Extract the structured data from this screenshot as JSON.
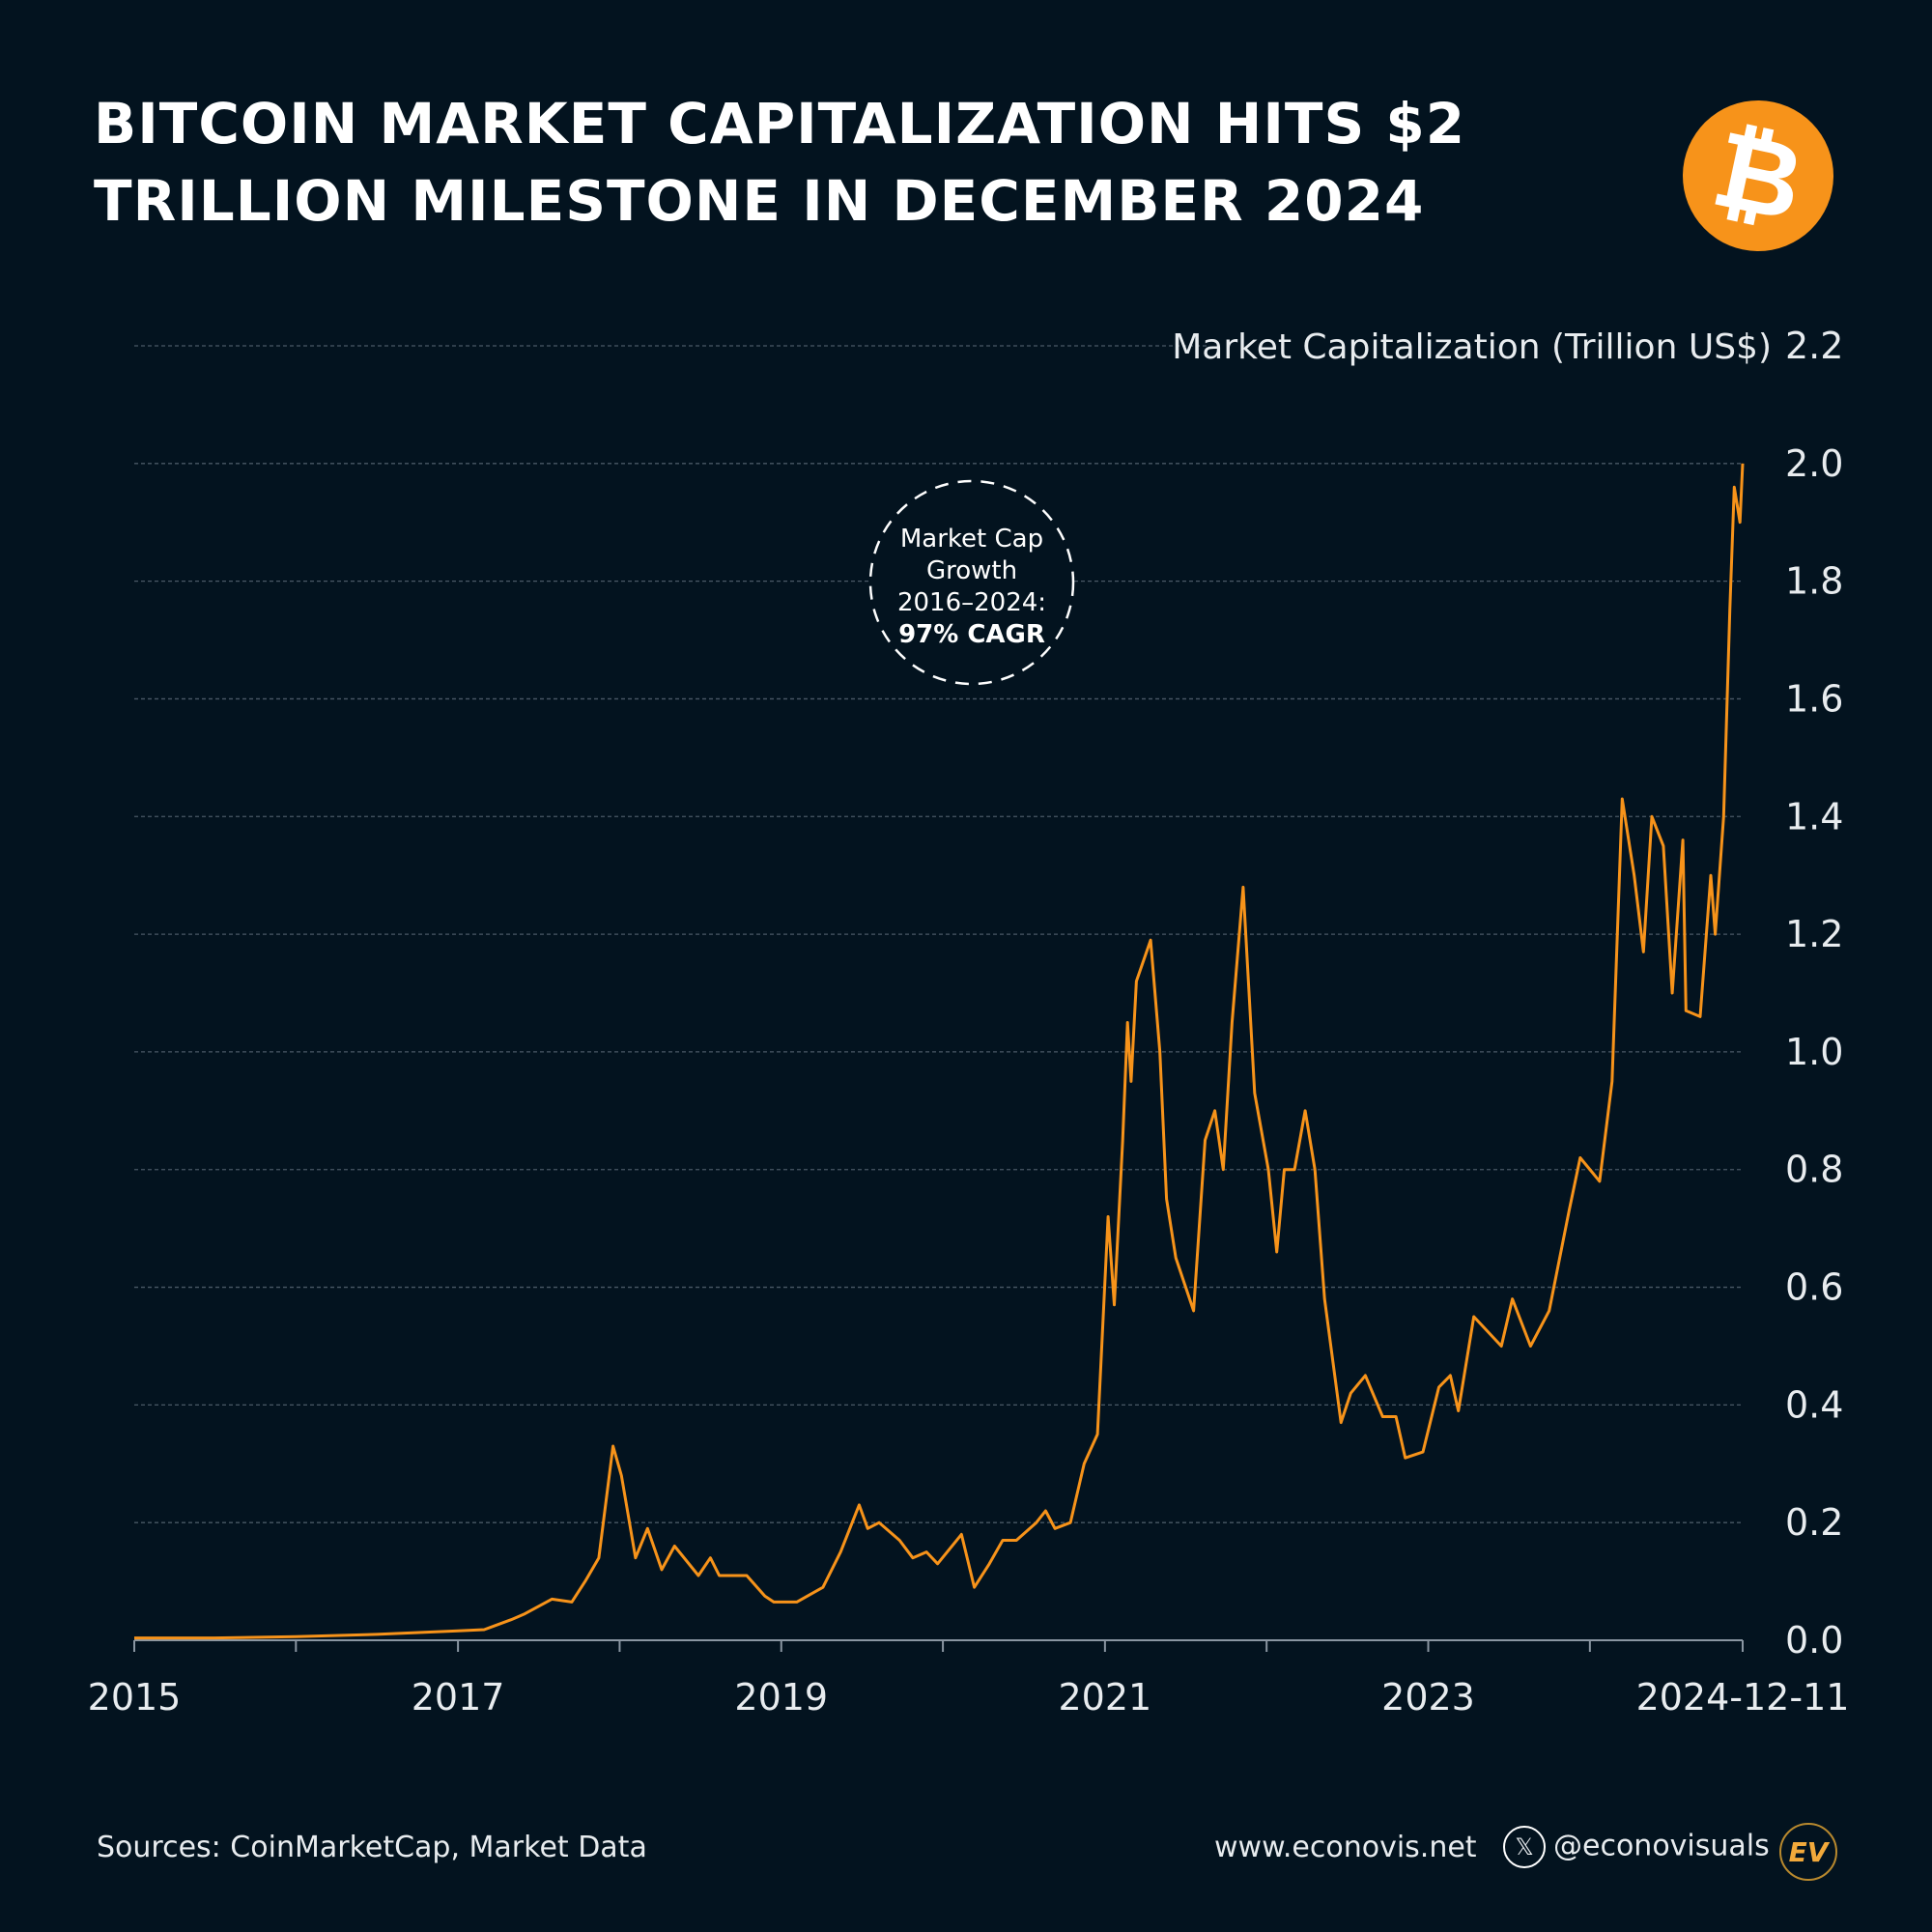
{
  "title_lines": [
    "BITCOIN MARKET CAPITALIZATION HITS $2",
    "TRILLION MILESTONE IN DECEMBER 2024"
  ],
  "logo_icon": "bitcoin-icon",
  "logo_glyph": "₿",
  "footer": {
    "sources": "Sources: CoinMarketCap, Market Data",
    "website": "www.econovis.net",
    "social_icon": "x-twitter-icon",
    "social_glyph": "𝕏",
    "handle": "@econovisuals",
    "brand_mark": "EV"
  },
  "colors": {
    "background": "#03131f",
    "line": "#f7931a",
    "logo": "#f7931a"
  },
  "chart_data": {
    "type": "line",
    "ylabel": "Market Capitalization (Trillion US$)",
    "ylim": [
      0,
      2.2
    ],
    "yticks": [
      "0.0",
      "0.2",
      "0.4",
      "0.6",
      "0.8",
      "1.0",
      "1.2",
      "1.4",
      "1.6",
      "1.8",
      "2.0",
      "2.2"
    ],
    "xlim": [
      "2015-01-01",
      "2024-12-11"
    ],
    "xticks": [
      "2015",
      "2017",
      "2019",
      "2021",
      "2023",
      "2024-12-11"
    ],
    "grid": true,
    "y_axis_side": "right",
    "annotation": [
      "Market Cap",
      "Growth",
      "2016–2024:",
      "97% CAGR"
    ],
    "series": [
      {
        "x": [
          "2015-01-01",
          "2015-07-01",
          "2016-01-01",
          "2016-07-01",
          "2017-01-01",
          "2017-03-01",
          "2017-05-01",
          "2017-06-01",
          "2017-08-01",
          "2017-09-15",
          "2017-10-15",
          "2017-11-15",
          "2017-12-17",
          "2018-01-05",
          "2018-02-06",
          "2018-03-05",
          "2018-04-06",
          "2018-05-05",
          "2018-06-28",
          "2018-07-25",
          "2018-08-14",
          "2018-10-15",
          "2018-11-25",
          "2018-12-15",
          "2019-02-05",
          "2019-04-05",
          "2019-05-15",
          "2019-06-26",
          "2019-07-15",
          "2019-08-10",
          "2019-09-25",
          "2019-10-25",
          "2019-11-25",
          "2019-12-20",
          "2020-02-12",
          "2020-03-12",
          "2020-04-15",
          "2020-05-15",
          "2020-06-15",
          "2020-07-30",
          "2020-08-20",
          "2020-09-10",
          "2020-10-15",
          "2020-11-15",
          "2020-12-15",
          "2021-01-08",
          "2021-01-22",
          "2021-02-10",
          "2021-02-21",
          "2021-03-01",
          "2021-03-13",
          "2021-04-14",
          "2021-05-05",
          "2021-05-20",
          "2021-06-10",
          "2021-07-20",
          "2021-08-15",
          "2021-09-06",
          "2021-09-25",
          "2021-10-15",
          "2021-11-09",
          "2021-12-05",
          "2022-01-05",
          "2022-01-24",
          "2022-02-10",
          "2022-03-05",
          "2022-03-29",
          "2022-04-20",
          "2022-05-12",
          "2022-06-18",
          "2022-07-10",
          "2022-08-12",
          "2022-09-20",
          "2022-10-20",
          "2022-11-10",
          "2022-12-20",
          "2023-01-25",
          "2023-02-20",
          "2023-03-10",
          "2023-04-14",
          "2023-06-15",
          "2023-07-10",
          "2023-08-20",
          "2023-10-01",
          "2023-11-15",
          "2023-12-10",
          "2024-01-23",
          "2024-02-20",
          "2024-03-14",
          "2024-04-10",
          "2024-05-01",
          "2024-05-20",
          "2024-06-15",
          "2024-07-05",
          "2024-07-29",
          "2024-08-05",
          "2024-09-06",
          "2024-09-30",
          "2024-10-10",
          "2024-10-29",
          "2024-11-12",
          "2024-11-22",
          "2024-12-05",
          "2024-12-11"
        ],
        "y": [
          0.004,
          0.004,
          0.006,
          0.01,
          0.016,
          0.018,
          0.035,
          0.045,
          0.07,
          0.065,
          0.1,
          0.14,
          0.33,
          0.28,
          0.14,
          0.19,
          0.12,
          0.16,
          0.11,
          0.14,
          0.11,
          0.11,
          0.075,
          0.065,
          0.065,
          0.09,
          0.15,
          0.23,
          0.19,
          0.2,
          0.17,
          0.14,
          0.15,
          0.13,
          0.18,
          0.09,
          0.13,
          0.17,
          0.17,
          0.2,
          0.22,
          0.19,
          0.2,
          0.3,
          0.35,
          0.72,
          0.57,
          0.85,
          1.05,
          0.95,
          1.12,
          1.19,
          1.0,
          0.75,
          0.65,
          0.56,
          0.85,
          0.9,
          0.8,
          1.05,
          1.28,
          0.93,
          0.8,
          0.66,
          0.8,
          0.8,
          0.9,
          0.8,
          0.58,
          0.37,
          0.42,
          0.45,
          0.38,
          0.38,
          0.31,
          0.32,
          0.43,
          0.45,
          0.39,
          0.55,
          0.5,
          0.58,
          0.5,
          0.56,
          0.73,
          0.82,
          0.78,
          0.95,
          1.43,
          1.3,
          1.17,
          1.4,
          1.35,
          1.1,
          1.36,
          1.07,
          1.06,
          1.3,
          1.2,
          1.4,
          1.75,
          1.96,
          1.9,
          2.0
        ]
      }
    ]
  }
}
